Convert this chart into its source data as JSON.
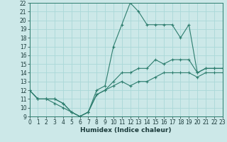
{
  "xlabel": "Humidex (Indice chaleur)",
  "bg_color": "#cce8e8",
  "grid_color": "#aad8d8",
  "line_color": "#2d7d6e",
  "x": [
    0,
    1,
    2,
    3,
    4,
    5,
    6,
    7,
    8,
    9,
    10,
    11,
    12,
    13,
    14,
    15,
    16,
    17,
    18,
    19,
    20,
    21,
    22,
    23
  ],
  "y_max": [
    12,
    11,
    11,
    11,
    10.5,
    9.5,
    9,
    9.5,
    12,
    12.5,
    17,
    19.5,
    22,
    21,
    19.5,
    19.5,
    19.5,
    19.5,
    18,
    19.5,
    14,
    14.5,
    14.5,
    14.5
  ],
  "y_mean": [
    12,
    11,
    11,
    11,
    10.5,
    9.5,
    9,
    9.5,
    11.5,
    12,
    13,
    14,
    14,
    14.5,
    14.5,
    15.5,
    15,
    15.5,
    15.5,
    15.5,
    14,
    14.5,
    14.5,
    14.5
  ],
  "y_min": [
    12,
    11,
    11,
    10.5,
    10,
    9.5,
    9,
    9.5,
    11.5,
    12,
    12.5,
    13,
    12.5,
    13,
    13,
    13.5,
    14,
    14,
    14,
    14,
    13.5,
    14,
    14,
    14
  ],
  "ylim": [
    9,
    22
  ],
  "xlim": [
    0,
    23
  ],
  "yticks": [
    9,
    10,
    11,
    12,
    13,
    14,
    15,
    16,
    17,
    18,
    19,
    20,
    21,
    22
  ],
  "xticks": [
    0,
    1,
    2,
    3,
    4,
    5,
    6,
    7,
    8,
    9,
    10,
    11,
    12,
    13,
    14,
    15,
    16,
    17,
    18,
    19,
    20,
    21,
    22,
    23
  ],
  "tick_fontsize": 5.5,
  "xlabel_fontsize": 6.5,
  "linewidth": 0.8,
  "marker_size": 2.5
}
